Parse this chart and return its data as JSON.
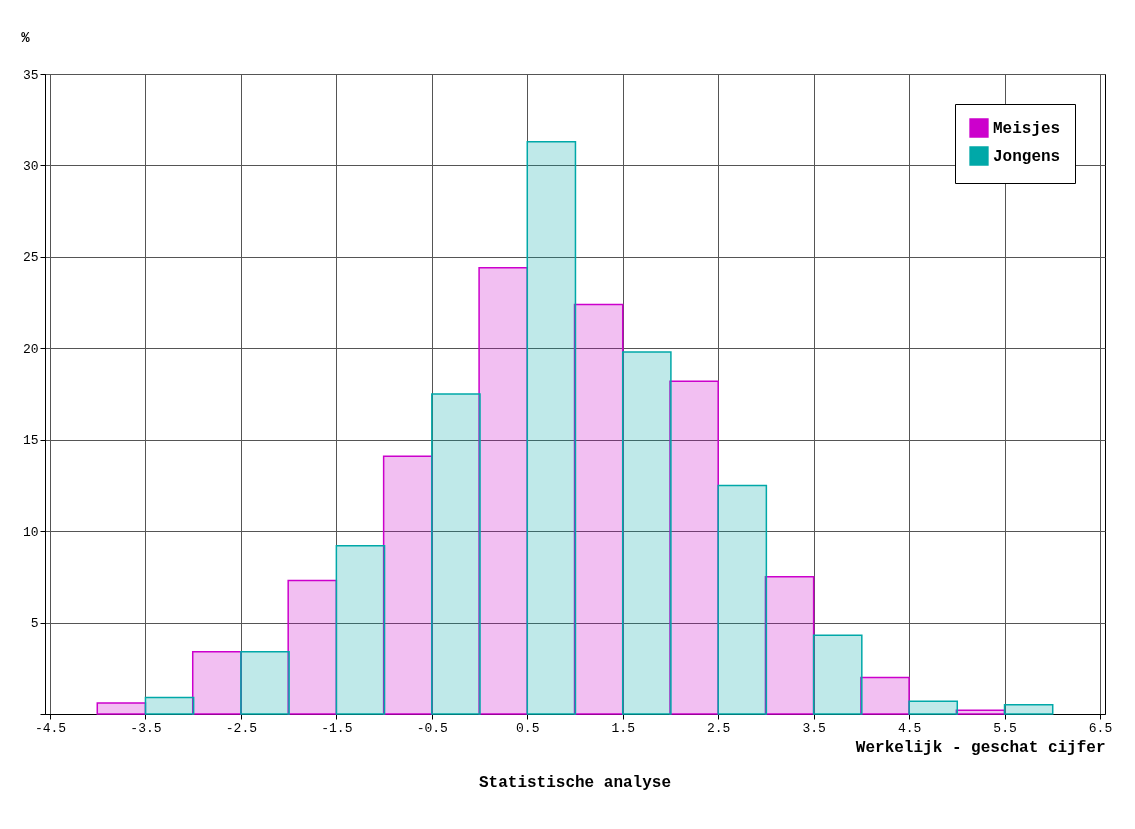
{
  "chart_data": {
    "type": "bar",
    "ylabel": "%",
    "xlabel": "Werkelijk - geschat cijfer",
    "annotations": [
      "Statistische analyse"
    ],
    "x": [
      -3.5,
      -2.5,
      -1.5,
      -0.5,
      0.5,
      1.5,
      2.5,
      3.5,
      4.5,
      5.5
    ],
    "series": [
      {
        "name": "Meisjes",
        "color": "#cc00cc",
        "values": [
          0.6,
          3.4,
          7.3,
          14.1,
          24.4,
          22.4,
          18.2,
          7.5,
          2.0,
          0.2
        ]
      },
      {
        "name": "Jongens",
        "color": "#00a8a8",
        "values": [
          0.9,
          3.4,
          9.2,
          17.5,
          31.3,
          19.8,
          12.5,
          4.3,
          0.7,
          0.5
        ]
      }
    ],
    "xlim": [
      -4.5,
      6.5
    ],
    "xticks": [
      -4.5,
      -3.5,
      -2.5,
      -1.5,
      -0.5,
      0.5,
      1.5,
      2.5,
      3.5,
      4.5,
      5.5,
      6.5
    ],
    "ylim": [
      0,
      35
    ],
    "yticks": [
      {
        "value": 0,
        "label": null
      },
      5,
      10,
      15,
      20,
      25,
      30,
      35
    ],
    "grid": true,
    "legend": "top right"
  }
}
